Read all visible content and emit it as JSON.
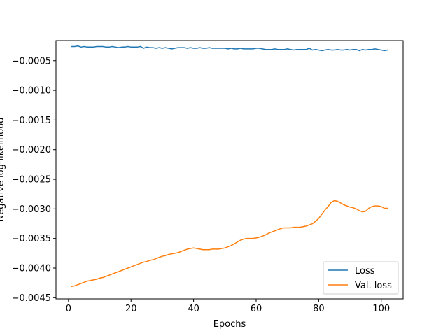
{
  "chart_data": {
    "type": "line",
    "title": "",
    "xlabel": "Epochs",
    "ylabel": "Negative log-likelihood",
    "xlim": [
      -4.0,
      107.0
    ],
    "ylim": [
      -0.00452,
      -0.00016
    ],
    "xticks": [
      0,
      20,
      40,
      60,
      80,
      100
    ],
    "xtick_labels": [
      "0",
      "20",
      "40",
      "60",
      "80",
      "100"
    ],
    "yticks": [
      -0.0005,
      -0.001,
      -0.0015,
      -0.002,
      -0.0025,
      -0.003,
      -0.0035,
      -0.004,
      -0.0045
    ],
    "ytick_labels": [
      "−0.0005",
      "−0.0010",
      "−0.0015",
      "−0.0020",
      "−0.0025",
      "−0.0030",
      "−0.0035",
      "−0.0040",
      "−0.0045"
    ],
    "grid": false,
    "legend": "lower-right",
    "series": [
      {
        "name": "Loss",
        "color": "#1f77b4",
        "x": [
          1,
          2,
          3,
          4,
          5,
          6,
          7,
          8,
          9,
          10,
          11,
          12,
          13,
          14,
          15,
          16,
          17,
          18,
          19,
          20,
          21,
          22,
          23,
          24,
          25,
          26,
          27,
          28,
          29,
          30,
          31,
          32,
          33,
          34,
          35,
          36,
          37,
          38,
          39,
          40,
          41,
          42,
          43,
          44,
          45,
          46,
          47,
          48,
          49,
          50,
          51,
          52,
          53,
          54,
          55,
          56,
          57,
          58,
          59,
          60,
          61,
          62,
          63,
          64,
          65,
          66,
          67,
          68,
          69,
          70,
          71,
          72,
          73,
          74,
          75,
          76,
          77,
          78,
          79,
          80,
          81,
          82,
          83,
          84,
          85,
          86,
          87,
          88,
          89,
          90,
          91,
          92,
          93,
          94,
          95,
          96,
          97,
          98,
          99,
          100,
          101,
          102
        ],
        "y": [
          -0.00026,
          -0.00026,
          -0.00025,
          -0.00027,
          -0.00026,
          -0.00027,
          -0.00027,
          -0.00027,
          -0.00026,
          -0.00026,
          -0.00026,
          -0.00027,
          -0.00027,
          -0.00026,
          -0.00027,
          -0.00028,
          -0.00027,
          -0.00027,
          -0.00026,
          -0.00027,
          -0.00027,
          -0.00027,
          -0.00026,
          -0.00029,
          -0.00027,
          -0.00028,
          -0.00028,
          -0.00029,
          -0.00028,
          -0.00029,
          -0.00028,
          -0.00029,
          -0.0003,
          -0.00029,
          -0.00028,
          -0.00028,
          -0.00028,
          -0.00029,
          -0.00028,
          -0.00029,
          -0.00029,
          -0.00028,
          -0.00029,
          -0.00029,
          -0.00028,
          -0.00029,
          -0.00029,
          -0.00029,
          -0.00029,
          -0.00029,
          -0.0003,
          -0.00029,
          -0.0003,
          -0.0003,
          -0.00029,
          -0.0003,
          -0.0003,
          -0.0003,
          -0.0003,
          -0.00029,
          -0.00029,
          -0.0003,
          -0.00031,
          -0.00031,
          -0.00031,
          -0.0003,
          -0.00031,
          -0.00031,
          -0.00031,
          -0.0003,
          -0.00031,
          -0.00032,
          -0.00031,
          -0.00031,
          -0.00031,
          -0.00031,
          -0.00029,
          -0.00032,
          -0.00031,
          -0.00032,
          -0.00033,
          -0.00032,
          -0.00031,
          -0.00032,
          -0.00032,
          -0.00031,
          -0.00032,
          -0.00032,
          -0.00031,
          -0.00032,
          -0.00031,
          -0.00031,
          -0.00033,
          -0.00031,
          -0.00032,
          -0.00031,
          -0.00031,
          -0.0003,
          -0.00031,
          -0.00032,
          -0.00033,
          -0.00032
        ]
      },
      {
        "name": "Val. loss",
        "color": "#ff7f0e",
        "x": [
          1,
          2,
          3,
          4,
          5,
          6,
          7,
          8,
          9,
          10,
          11,
          12,
          13,
          14,
          15,
          16,
          17,
          18,
          19,
          20,
          21,
          22,
          23,
          24,
          25,
          26,
          27,
          28,
          29,
          30,
          31,
          32,
          33,
          34,
          35,
          36,
          37,
          38,
          39,
          40,
          41,
          42,
          43,
          44,
          45,
          46,
          47,
          48,
          49,
          50,
          51,
          52,
          53,
          54,
          55,
          56,
          57,
          58,
          59,
          60,
          61,
          62,
          63,
          64,
          65,
          66,
          67,
          68,
          69,
          70,
          71,
          72,
          73,
          74,
          75,
          76,
          77,
          78,
          79,
          80,
          81,
          82,
          83,
          84,
          85,
          86,
          87,
          88,
          89,
          90,
          91,
          92,
          93,
          94,
          95,
          96,
          97,
          98,
          99,
          100,
          101,
          102
        ],
        "y": [
          -0.00431,
          -0.0043,
          -0.00428,
          -0.00426,
          -0.00424,
          -0.00422,
          -0.00421,
          -0.0042,
          -0.00419,
          -0.00417,
          -0.00416,
          -0.00414,
          -0.00412,
          -0.0041,
          -0.00408,
          -0.00406,
          -0.00404,
          -0.00402,
          -0.004,
          -0.00398,
          -0.00396,
          -0.00394,
          -0.00392,
          -0.0039,
          -0.00389,
          -0.00387,
          -0.00386,
          -0.00384,
          -0.00382,
          -0.0038,
          -0.00379,
          -0.00377,
          -0.00376,
          -0.00375,
          -0.00374,
          -0.00372,
          -0.0037,
          -0.00368,
          -0.00367,
          -0.00366,
          -0.00367,
          -0.00368,
          -0.00369,
          -0.00369,
          -0.00369,
          -0.00368,
          -0.00368,
          -0.00368,
          -0.00367,
          -0.00366,
          -0.00364,
          -0.00362,
          -0.00359,
          -0.00356,
          -0.00353,
          -0.00351,
          -0.0035,
          -0.0035,
          -0.0035,
          -0.00349,
          -0.00348,
          -0.00346,
          -0.00344,
          -0.00341,
          -0.00339,
          -0.00337,
          -0.00335,
          -0.00333,
          -0.00332,
          -0.00332,
          -0.00332,
          -0.00331,
          -0.00331,
          -0.00331,
          -0.0033,
          -0.00329,
          -0.00327,
          -0.00325,
          -0.00321,
          -0.00316,
          -0.00309,
          -0.00302,
          -0.00296,
          -0.00289,
          -0.00286,
          -0.00287,
          -0.0029,
          -0.00293,
          -0.00295,
          -0.00297,
          -0.00298,
          -0.003,
          -0.00303,
          -0.00305,
          -0.00304,
          -0.00299,
          -0.00296,
          -0.00295,
          -0.00295,
          -0.00296,
          -0.00299,
          -0.00299
        ]
      }
    ]
  }
}
